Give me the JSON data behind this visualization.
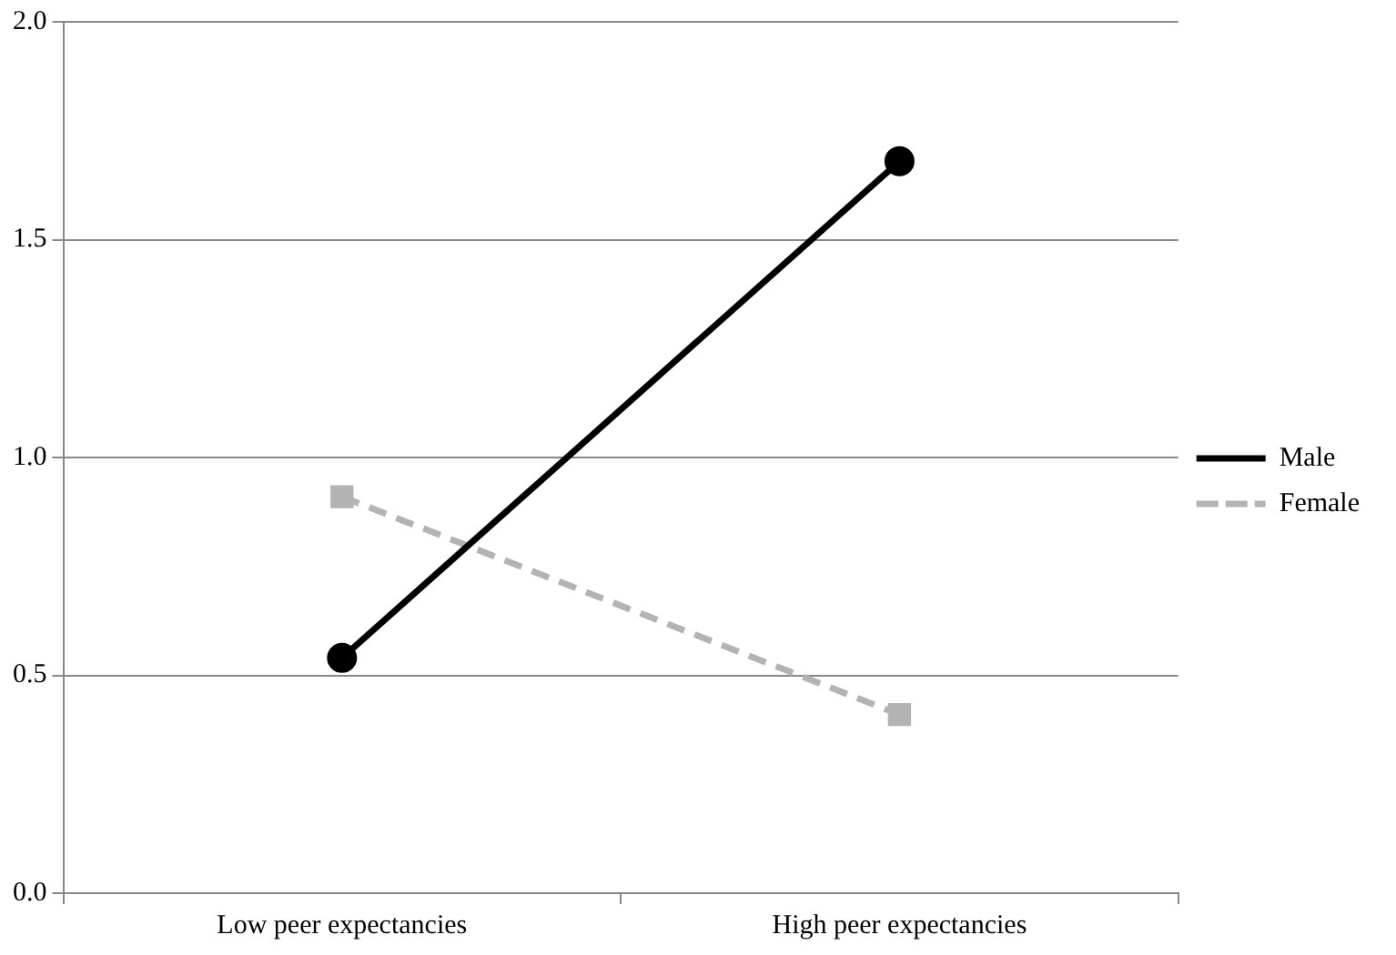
{
  "chart_data": {
    "type": "line",
    "categories": [
      "Low peer expectancies",
      "High peer expectancies"
    ],
    "series": [
      {
        "name": "Male",
        "color": "#000000",
        "values": [
          0.54,
          1.68
        ],
        "marker": "circle",
        "line_style": "solid"
      },
      {
        "name": "Female",
        "color": "#b3b3b3",
        "values": [
          0.91,
          0.41
        ],
        "marker": "square",
        "line_style": "dashed"
      }
    ],
    "ylim": [
      0,
      2
    ],
    "yticks": [
      {
        "value": 0,
        "label": "0.0"
      },
      {
        "value": 0.5,
        "label": "0.5"
      },
      {
        "value": 1,
        "label": "1.0"
      },
      {
        "value": 1.5,
        "label": "1.5"
      },
      {
        "value": 2,
        "label": "2.0"
      }
    ],
    "grid": "y",
    "legend": "right"
  }
}
